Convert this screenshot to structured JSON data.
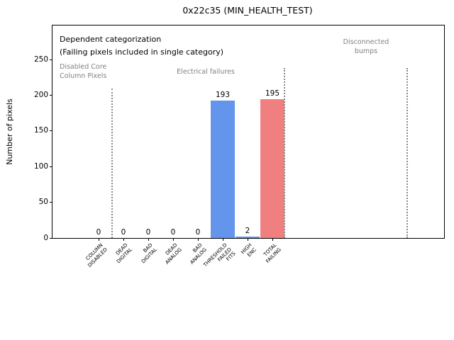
{
  "chart_data": {
    "type": "bar",
    "title": "0x22c35 (MIN_HEALTH_TEST)",
    "ylabel": "Number of pixels",
    "xlabel": "",
    "categories": [
      "COLUMN\nDISABLED",
      "DEAD\nDIGITAL",
      "BAD\nDIGITAL",
      "DEAD\nANALOG",
      "BAD\nANALOG",
      "THRESHOLD\nFAILED\nFITS",
      "HIGH\nENC",
      "TOTAL\nFAILING"
    ],
    "values": [
      0,
      0,
      0,
      0,
      0,
      193,
      2,
      195
    ],
    "value_labels": [
      "0",
      "0",
      "0",
      "0",
      "0",
      "193",
      "2",
      "195"
    ],
    "bar_colors": [
      "#6495ed",
      "#6495ed",
      "#6495ed",
      "#6495ed",
      "#6495ed",
      "#6495ed",
      "#6495ed",
      "#f08080"
    ],
    "yticks": [
      0,
      50,
      100,
      150,
      200,
      250
    ],
    "ylim": [
      0,
      298
    ],
    "grid": false,
    "legend": null,
    "annotations": [
      {
        "text": "Dependent categorization",
        "color": "#000000"
      },
      {
        "text": "(Failing pixels included in single category)",
        "color": "#000000"
      }
    ],
    "region_labels": [
      {
        "text": "Disabled Core\nColumn Pixels",
        "color": "#808080"
      },
      {
        "text": "Electrical failures",
        "color": "#808080"
      },
      {
        "text": "Disconnected\nbumps",
        "color": "#808080"
      }
    ],
    "separator_style": "dotted",
    "separator_color": "#8a8a8a",
    "colors": {
      "pass_bar": "#6495ed",
      "total_bar": "#f08080",
      "region_text": "#808080",
      "background": "#ffffff"
    }
  }
}
